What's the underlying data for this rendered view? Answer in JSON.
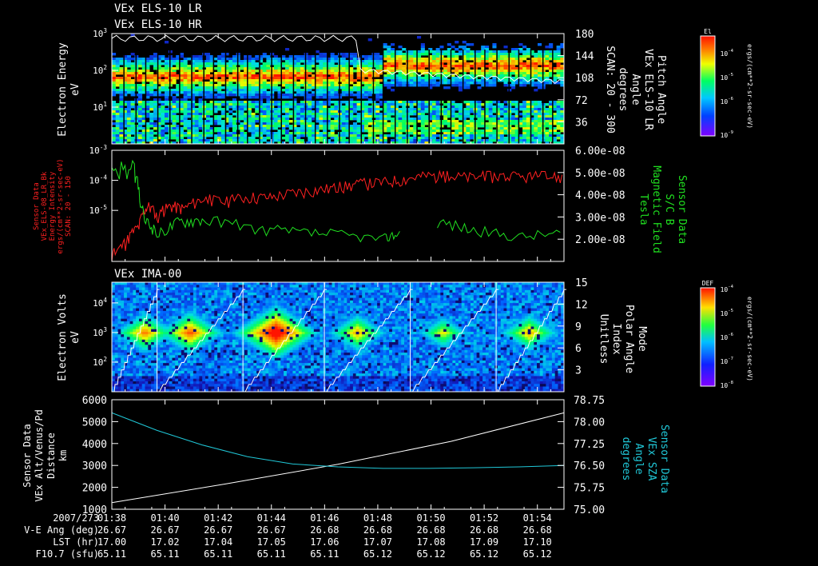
{
  "chart_data": [
    {
      "type": "heatmap",
      "title_lines": [
        "VEx ELS-10 LR",
        "VEx ELS-10 HR"
      ],
      "ylabel_lines": [
        "Electron Energy",
        "eV"
      ],
      "yscale": "log",
      "ylim": [
        1,
        1000
      ],
      "yticks": [
        {
          "v": 10,
          "label": "10"
        },
        {
          "v": 100,
          "label": "10"
        },
        {
          "v": 1000,
          "label": "10"
        }
      ],
      "ytick_exps": [
        "1",
        "2",
        "3"
      ],
      "right_ylabel_lines": [
        "Pitch Angle",
        "VEx ELS-10 LR",
        "Angle",
        "degrees",
        "SCAN: 20 - 300"
      ],
      "right_ylim": [
        0,
        180
      ],
      "right_ticks": [
        "180",
        "144",
        "108",
        "72",
        "36"
      ],
      "right_tick_values": [
        180,
        144,
        108,
        72,
        36
      ],
      "colorbar": {
        "title": "El",
        "units": "ergs/(cm**2-sr-sec-eV)",
        "scale": "log",
        "labels": [
          "10",
          "10",
          "10"
        ],
        "exps": [
          "-4",
          "-5",
          "-6"
        ],
        "bottom_label": "10",
        "bottom_exp": "-9"
      }
    },
    {
      "type": "line",
      "left_ylabel_lines": [
        "Sensor Data",
        "VEx_ELS-08_LR_Bk",
        "Energy Intensity",
        "ergs/(cm**2-sr-sec-eV)",
        "SCAN: 20 - 150"
      ],
      "left_yscale": "log",
      "left_ylim": [
        2e-07,
        0.001
      ],
      "left_ticks": [
        {
          "v": 0.001,
          "label": "10",
          "exp": "-3"
        },
        {
          "v": 0.0001,
          "label": "10",
          "exp": "-4"
        },
        {
          "v": 1e-05,
          "label": "10",
          "exp": "-5"
        }
      ],
      "right_ylabel_lines": [
        "Sensor Data",
        "S/C B",
        "Magnetic Field",
        "Tesla"
      ],
      "right_ylim": [
        1e-08,
        6e-08
      ],
      "right_ticks": [
        {
          "v": 6e-08,
          "label": "6.00e-08"
        },
        {
          "v": 5e-08,
          "label": "5.00e-08"
        },
        {
          "v": 4e-08,
          "label": "4.00e-08"
        },
        {
          "v": 3e-08,
          "label": "3.00e-08"
        },
        {
          "v": 2e-08,
          "label": "2.00e-08"
        }
      ],
      "series": [
        {
          "name": "",
          "color": "#ff2020",
          "axis": "left",
          "points": [
            [
              0,
              3e-07
            ],
            [
              0.03,
              8e-07
            ],
            [
              0.06,
              3e-06
            ],
            [
              0.08,
              1.5e-05
            ],
            [
              0.1,
              6e-06
            ],
            [
              0.13,
              1.5e-05
            ],
            [
              0.16,
              1.2e-05
            ],
            [
              0.2,
              2.5e-05
            ],
            [
              0.25,
              2e-05
            ],
            [
              0.3,
              3e-05
            ],
            [
              0.35,
              2.8e-05
            ],
            [
              0.4,
              4e-05
            ],
            [
              0.45,
              5e-05
            ],
            [
              0.5,
              6e-05
            ],
            [
              0.55,
              8e-05
            ],
            [
              0.6,
              9e-05
            ],
            [
              0.65,
              0.00012
            ],
            [
              0.7,
              0.00015
            ],
            [
              0.75,
              0.00014
            ],
            [
              0.8,
              0.00013
            ],
            [
              0.85,
              0.00015
            ],
            [
              0.9,
              0.00013
            ],
            [
              0.95,
              0.00014
            ],
            [
              1.0,
              0.00013
            ]
          ]
        },
        {
          "name": "",
          "color": "#20e020",
          "axis": "right",
          "points": [
            [
              0,
              5.3e-08
            ],
            [
              0.05,
              5e-08
            ],
            [
              0.07,
              3e-08
            ],
            [
              0.1,
              2.2e-08
            ],
            [
              0.15,
              2.8e-08
            ],
            [
              0.2,
              2.9e-08
            ],
            [
              0.3,
              2.5e-08
            ],
            [
              0.4,
              2.3e-08
            ],
            [
              0.5,
              2.2e-08
            ],
            [
              0.6,
              2e-08
            ],
            [
              0.64,
              2.3e-08
            ],
            [
              0.68,
              null
            ],
            [
              0.72,
              2.8e-08
            ],
            [
              0.8,
              2.4e-08
            ],
            [
              0.9,
              2.1e-08
            ],
            [
              1.0,
              2.3e-08
            ]
          ]
        }
      ]
    },
    {
      "type": "heatmap",
      "title": "VEx IMA-00",
      "ylabel_lines": [
        "Electron Volts",
        "eV"
      ],
      "yscale": "log",
      "ylim": [
        10,
        50000
      ],
      "yticks": [
        {
          "v": 100,
          "label": "10",
          "exp": "2"
        },
        {
          "v": 1000,
          "label": "10",
          "exp": "3"
        },
        {
          "v": 10000,
          "label": "10",
          "exp": "4"
        }
      ],
      "right_ylabel_lines": [
        "Mode",
        "Polar Angle",
        "Index",
        "Unitless"
      ],
      "right_ylim": [
        0,
        15
      ],
      "right_ticks": [
        "15",
        "12",
        "9",
        "6",
        "3"
      ],
      "right_tick_values": [
        15,
        12,
        9,
        6,
        3
      ],
      "colorbar": {
        "title": "DEF",
        "units": "ergs/(cm**2-sr-sec-eV)",
        "scale": "log",
        "labels": [
          "10",
          "10",
          "10",
          "10"
        ],
        "exps": [
          "-4",
          "-5",
          "-6",
          "-7"
        ],
        "bottom_label": "10",
        "bottom_exp": "-8"
      }
    },
    {
      "type": "line",
      "left_ylabel_lines": [
        "Sensor Data",
        "VEx Alt/Venus/Pd",
        "Distance",
        "km"
      ],
      "left_ylim": [
        1000,
        6000
      ],
      "left_ticks": [
        "6000",
        "5000",
        "4000",
        "3000",
        "2000",
        "1000"
      ],
      "left_tick_values": [
        6000,
        5000,
        4000,
        3000,
        2000,
        1000
      ],
      "right_ylabel_lines": [
        "Sensor Data",
        "VEx SZA",
        "Angle",
        "degrees"
      ],
      "right_ylim": [
        75.0,
        78.75
      ],
      "right_ticks": [
        "78.75",
        "78.00",
        "77.25",
        "76.50",
        "75.75",
        "75.00"
      ],
      "right_tick_values": [
        78.75,
        78.0,
        77.25,
        76.5,
        75.75,
        75.0
      ],
      "series": [
        {
          "name": "",
          "color": "#ffffff",
          "axis": "left",
          "points": [
            [
              0,
              1300
            ],
            [
              0.25,
              2150
            ],
            [
              0.5,
              3050
            ],
            [
              0.75,
              4100
            ],
            [
              1.0,
              5400
            ]
          ]
        },
        {
          "name": "",
          "color": "#20c8d8",
          "axis": "right",
          "points": [
            [
              0,
              78.3
            ],
            [
              0.1,
              77.7
            ],
            [
              0.2,
              77.2
            ],
            [
              0.3,
              76.8
            ],
            [
              0.4,
              76.55
            ],
            [
              0.5,
              76.45
            ],
            [
              0.6,
              76.4
            ],
            [
              0.7,
              76.4
            ],
            [
              0.8,
              76.42
            ],
            [
              0.9,
              76.45
            ],
            [
              1.0,
              76.5
            ]
          ]
        }
      ]
    }
  ],
  "xaxis": {
    "range": [
      "01:38",
      "01:55"
    ],
    "ticks": [
      "01:38",
      "01:40",
      "01:42",
      "01:44",
      "01:46",
      "01:48",
      "01:50",
      "01:52",
      "01:54"
    ],
    "tick_fractions": [
      0,
      0.1176,
      0.2353,
      0.3529,
      0.4706,
      0.5882,
      0.7059,
      0.8235,
      0.9412
    ],
    "rows": [
      {
        "label": "2007/273",
        "values": [
          "01:38",
          "01:40",
          "01:42",
          "01:44",
          "01:46",
          "01:48",
          "01:50",
          "01:52",
          "01:54"
        ]
      },
      {
        "label": "V-E Ang (deg)",
        "values": [
          "26.67",
          "26.67",
          "26.67",
          "26.67",
          "26.68",
          "26.68",
          "26.68",
          "26.68",
          "26.68"
        ]
      },
      {
        "label": "LST (hr)",
        "values": [
          "17.00",
          "17.02",
          "17.04",
          "17.05",
          "17.06",
          "17.07",
          "17.08",
          "17.09",
          "17.10"
        ]
      },
      {
        "label": "F10.7 (sfu)",
        "values": [
          "65.11",
          "65.11",
          "65.11",
          "65.11",
          "65.11",
          "65.12",
          "65.12",
          "65.12",
          "65.12"
        ]
      }
    ]
  }
}
